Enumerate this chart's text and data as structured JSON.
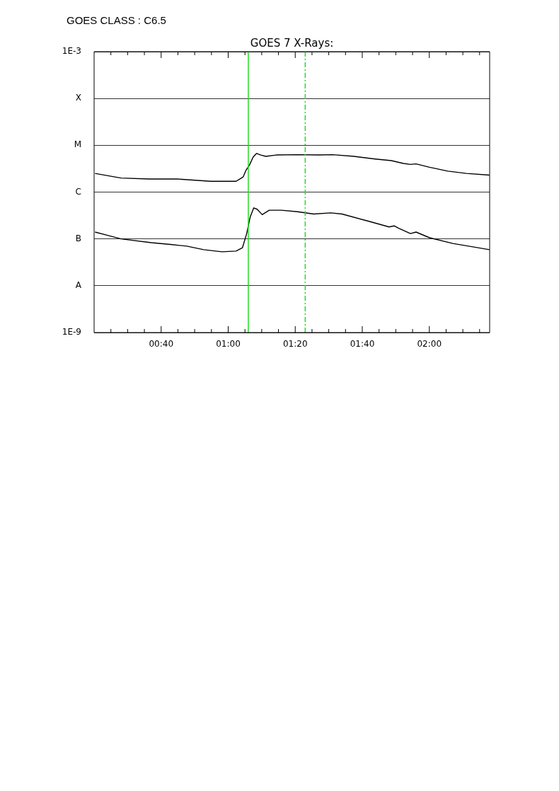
{
  "chart_data": {
    "type": "line",
    "title": "GOES 7 X-Rays:",
    "annotations": [
      "GOES CLASS : C6.5"
    ],
    "log": "y",
    "grid": "y",
    "legend": false,
    "marker": "none",
    "line_style": "solid",
    "xlim": [
      0.3333,
      2.3
    ],
    "ylim": [
      1e-09,
      0.001
    ],
    "xticks": [
      {
        "value": 0.4167,
        "label": null
      },
      {
        "value": 0.5,
        "label": null
      },
      {
        "value": 0.5833,
        "label": null
      },
      {
        "value": 0.6667,
        "label": "00:40"
      },
      {
        "value": 0.75,
        "label": null
      },
      {
        "value": 0.8333,
        "label": null
      },
      {
        "value": 0.9167,
        "label": null
      },
      {
        "value": 1,
        "label": "01:00"
      },
      {
        "value": 1.0833,
        "label": null
      },
      {
        "value": 1.1667,
        "label": null
      },
      {
        "value": 1.25,
        "label": null
      },
      {
        "value": 1.3333,
        "label": "01:20"
      },
      {
        "value": 1.4167,
        "label": null
      },
      {
        "value": 1.5,
        "label": null
      },
      {
        "value": 1.5833,
        "label": null
      },
      {
        "value": 1.6667,
        "label": "01:40"
      },
      {
        "value": 1.75,
        "label": null
      },
      {
        "value": 1.8333,
        "label": null
      },
      {
        "value": 1.9167,
        "label": null
      },
      {
        "value": 2,
        "label": "02:00"
      },
      {
        "value": 2.0833,
        "label": null
      },
      {
        "value": 2.1667,
        "label": null
      },
      {
        "value": 2.25,
        "label": null
      }
    ],
    "yticks": [
      {
        "value": 1e-09,
        "label": "1E-9"
      },
      {
        "value": 1e-08,
        "label": "A"
      },
      {
        "value": 1e-07,
        "label": "B"
      },
      {
        "value": 1e-06,
        "label": "C"
      },
      {
        "value": 1e-05,
        "label": "M"
      },
      {
        "value": 0.0001,
        "label": "X"
      },
      {
        "value": 0.001,
        "label": "1E-3"
      }
    ],
    "ref_lines": [
      {
        "axis": "x",
        "value": 1.1,
        "color": "#22dd22",
        "line_style": "solid"
      },
      {
        "axis": "x",
        "value": 1.383,
        "color": "#22dd22",
        "line_style": "dashed"
      }
    ],
    "series": [
      {
        "color": "#000000",
        "x": [
          0.338,
          0.467,
          0.608,
          0.748,
          0.913,
          1.039,
          1.074,
          1.088,
          1.106,
          1.124,
          1.141,
          1.162,
          1.187,
          1.239,
          1.345,
          1.45,
          1.52,
          1.626,
          1.731,
          1.811,
          1.871,
          1.906,
          1.934,
          2.001,
          2.092,
          2.185,
          2.299
        ],
        "values": [
          2.5e-06,
          2e-06,
          1.9e-06,
          1.9e-06,
          1.7e-06,
          1.7e-06,
          2.1e-06,
          2.9e-06,
          3.8e-06,
          5.6e-06,
          6.7e-06,
          6.2e-06,
          5.8e-06,
          6.2e-06,
          6.3e-06,
          6.2e-06,
          6.3e-06,
          5.8e-06,
          5.1e-06,
          4.7e-06,
          4.1e-06,
          3.9e-06,
          4e-06,
          3.4e-06,
          2.8e-06,
          2.5e-06,
          2.3e-06
        ]
      },
      {
        "color": "#000000",
        "x": [
          0.338,
          0.397,
          0.467,
          0.618,
          0.713,
          0.794,
          0.878,
          0.969,
          1.039,
          1.071,
          1.092,
          1.109,
          1.127,
          1.144,
          1.169,
          1.204,
          1.264,
          1.345,
          1.425,
          1.51,
          1.566,
          1.696,
          1.8,
          1.825,
          1.846,
          1.906,
          1.934,
          2.001,
          2.117,
          2.299
        ],
        "values": [
          1.4e-07,
          1.2e-07,
          1e-07,
          8.3e-08,
          7.6e-08,
          7e-08,
          5.9e-08,
          5.3e-08,
          5.5e-08,
          6.5e-08,
          1.3e-07,
          2.9e-07,
          4.6e-07,
          4.3e-07,
          3.3e-07,
          4.1e-07,
          4.1e-07,
          3.8e-07,
          3.4e-07,
          3.6e-07,
          3.4e-07,
          2.4e-07,
          1.8e-07,
          1.9e-07,
          1.7e-07,
          1.3e-07,
          1.4e-07,
          1.06e-07,
          8e-08,
          5.9e-08
        ]
      }
    ]
  }
}
